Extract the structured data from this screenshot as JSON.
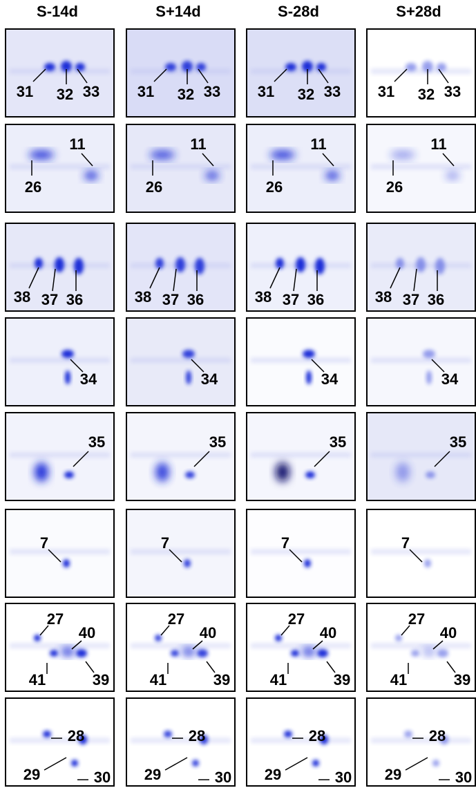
{
  "column_headers": [
    "S-14d",
    "S+14d",
    "S-28d",
    "S+28d"
  ],
  "rows": [
    [
      [
        "31",
        "32",
        "33"
      ],
      [
        "31",
        "32",
        "33"
      ],
      [
        "31",
        "32",
        "33"
      ],
      [
        "31",
        "32",
        "33"
      ]
    ],
    [
      [
        "11",
        "26"
      ],
      [
        "11",
        "26"
      ],
      [
        "11",
        "26"
      ],
      [
        "11",
        "26"
      ]
    ],
    [
      [
        "38",
        "37",
        "36"
      ],
      [
        "38",
        "37",
        "36"
      ],
      [
        "38",
        "37",
        "36"
      ],
      [
        "38",
        "37",
        "36"
      ]
    ],
    [
      [
        "34"
      ],
      [
        "34"
      ],
      [
        "34"
      ],
      [
        "34"
      ]
    ],
    [
      [
        "35"
      ],
      [
        "35"
      ],
      [
        "35"
      ],
      [
        "35"
      ]
    ],
    [
      [
        "7"
      ],
      [
        "7"
      ],
      [
        "7"
      ],
      [
        "7"
      ]
    ],
    [
      [
        "27",
        "40",
        "41",
        "39"
      ],
      [
        "27",
        "40",
        "41",
        "39"
      ],
      [
        "27",
        "40",
        "41",
        "39"
      ],
      [
        "27",
        "40",
        "41",
        "39"
      ]
    ],
    [
      [
        "28",
        "29",
        "30"
      ],
      [
        "28",
        "29",
        "30"
      ],
      [
        "28",
        "29",
        "30"
      ],
      [
        "28",
        "29",
        "30"
      ]
    ]
  ]
}
